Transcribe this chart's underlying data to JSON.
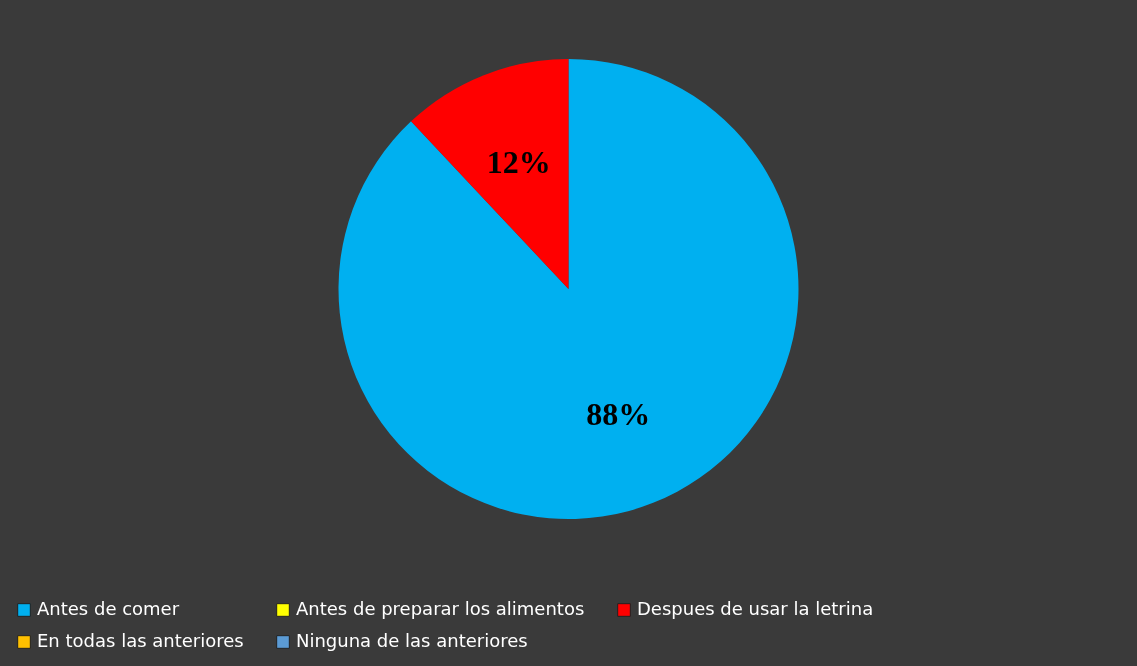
{
  "chart_data": {
    "type": "pie",
    "categories": [
      "Antes de comer",
      "Antes de preparar los alimentos",
      "Despues de usar la letrina",
      "En todas las anteriores",
      "Ninguna de las anteriores"
    ],
    "values": [
      88,
      0,
      12,
      0,
      0
    ],
    "colors": [
      "#00b0f0",
      "#ffff00",
      "#ff0000",
      "#ffc000",
      "#5b9bd5"
    ],
    "value_labels": [
      "88%",
      null,
      "12%",
      null,
      null
    ],
    "legend": "bottom"
  }
}
